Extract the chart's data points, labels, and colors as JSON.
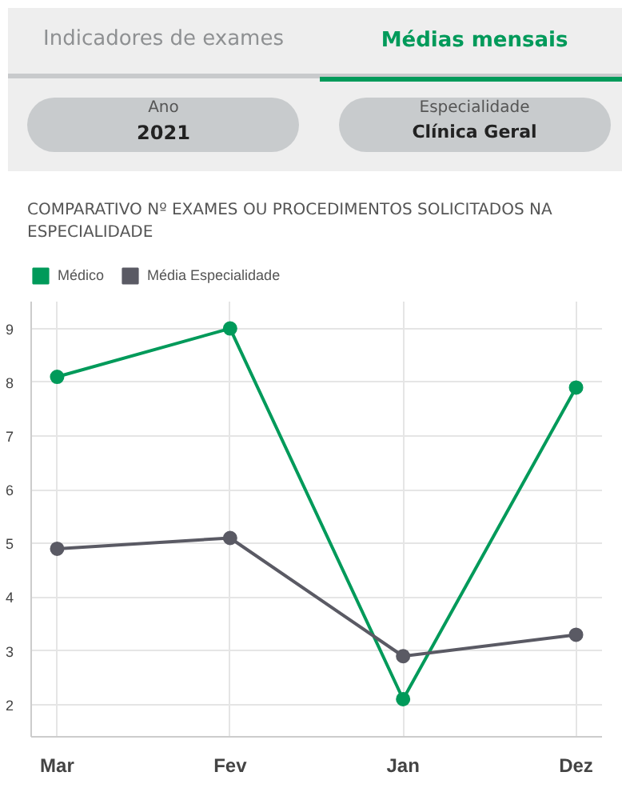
{
  "chart_data": {
    "type": "line",
    "title": "COMPARATIVO Nº EXAMES OU PROCEDIMENTOS SOLICITADOS NA ESPECIALIDADE",
    "annotations": [
      "Indicadores de exames",
      "Médias mensais",
      "Ano",
      "2021",
      "Especialidade",
      "Clínica Geral"
    ],
    "categories": [
      "Mar",
      "Fev",
      "Jan",
      "Dez"
    ],
    "series": [
      {
        "name": "Médico",
        "color": "#009a5a",
        "values": [
          8.1,
          9,
          2.1,
          7.9
        ]
      },
      {
        "name": "Média Especialidade",
        "color": "#5a5a64",
        "values": [
          4.9,
          5.1,
          2.9,
          3.3
        ]
      }
    ],
    "ylim": [
      1.4,
      9.5
    ],
    "yticks": [
      2,
      3,
      4,
      5,
      6,
      7,
      8,
      9
    ],
    "grid": true,
    "legend": "top left",
    "marker": "circle",
    "line_style": "solid"
  }
}
